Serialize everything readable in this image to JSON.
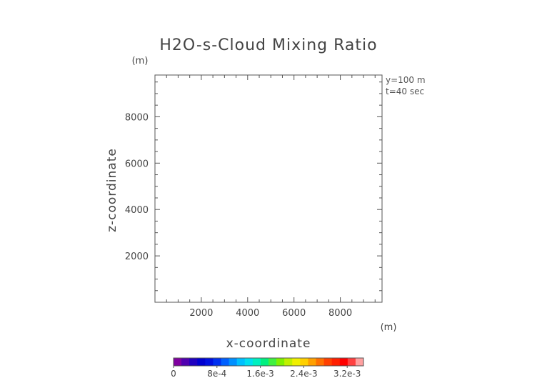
{
  "chart_data": {
    "type": "heatmap",
    "title": "H2O-s-Cloud Mixing Ratio",
    "xlabel": "x-coordinate",
    "ylabel": "z-coordinate",
    "x_unit": "(m)",
    "y_unit": "(m)",
    "xlim": [
      0,
      9800
    ],
    "ylim": [
      0,
      9800
    ],
    "x_ticks": [
      2000,
      4000,
      6000,
      8000
    ],
    "y_ticks": [
      2000,
      4000,
      6000,
      8000
    ],
    "x_tick_labels": [
      "2000",
      "4000",
      "6000",
      "8000"
    ],
    "y_tick_labels": [
      "2000",
      "4000",
      "6000",
      "8000"
    ],
    "annotations": [
      "y=100 m",
      "t=40 sec"
    ],
    "values": [],
    "colorbar": {
      "min": 0,
      "max": 0.0035,
      "tick_values": [
        0,
        0.0008,
        0.0016,
        0.0024,
        0.0032
      ],
      "tick_labels": [
        "0",
        "8e-4",
        "1.6e-3",
        "2.4e-3",
        "3.2e-3"
      ],
      "colors": [
        "#8000a0",
        "#5000b0",
        "#2000c0",
        "#0000d0",
        "#0010e0",
        "#0030f0",
        "#0060ff",
        "#0090ff",
        "#00c0ff",
        "#00e0f0",
        "#00f0c0",
        "#00f080",
        "#40f040",
        "#80f000",
        "#c0f000",
        "#f0f000",
        "#ffd000",
        "#ffa000",
        "#ff7000",
        "#ff4000",
        "#ff2000",
        "#ff0000",
        "#ff4040",
        "#ffa0a0"
      ]
    }
  }
}
